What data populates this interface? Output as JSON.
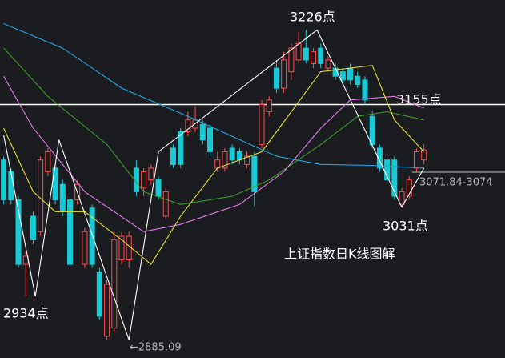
{
  "chart_data": {
    "type": "candlestick",
    "title": "上证指数日K线图解",
    "xlim": [
      -0.5,
      68
    ],
    "ylim": [
      2865,
      3259
    ],
    "up_color": "#ff4d4f",
    "down_color": "#19c9d6",
    "open": [
      3083,
      3070,
      3039,
      2968,
      3021,
      3004,
      3070,
      3074,
      3056,
      3039,
      3039,
      2968,
      3030,
      2959,
      2889,
      2898,
      2973,
      2973,
      3074,
      3052,
      3061,
      3061,
      3021,
      3096,
      3114,
      3114,
      3118,
      3122,
      3118,
      3074,
      3074,
      3096,
      3092,
      3078,
      3087,
      3100,
      3136,
      3184,
      3162,
      3180,
      3193,
      3206,
      3189,
      3206,
      3184,
      3184,
      3180,
      3184,
      3175,
      3171,
      3131,
      3096,
      3083,
      3083,
      3034,
      3043,
      3074,
      3083
    ],
    "high": [
      3087,
      3074,
      3043,
      2982,
      3026,
      3087,
      3096,
      3078,
      3061,
      3043,
      3061,
      3008,
      3034,
      2964,
      2951,
      3004,
      3004,
      3004,
      3083,
      3074,
      3078,
      3065,
      3052,
      3100,
      3118,
      3136,
      3142,
      3127,
      3122,
      3092,
      3096,
      3100,
      3096,
      3092,
      3092,
      3149,
      3153,
      3193,
      3202,
      3211,
      3224,
      3226,
      3206,
      3211,
      3197,
      3189,
      3184,
      3189,
      3180,
      3175,
      3136,
      3100,
      3087,
      3087,
      3052,
      3065,
      3096,
      3100
    ],
    "low": [
      3034,
      3034,
      2964,
      2933,
      2990,
      2999,
      3065,
      3034,
      3021,
      2964,
      3034,
      2964,
      2964,
      2907,
      2885,
      2893,
      2968,
      2964,
      3043,
      3043,
      3056,
      3039,
      3017,
      3074,
      3074,
      3109,
      3114,
      3100,
      3087,
      3070,
      3070,
      3078,
      3078,
      3074,
      3032,
      3096,
      3131,
      3157,
      3157,
      3171,
      3189,
      3189,
      3184,
      3184,
      3180,
      3171,
      3166,
      3166,
      3162,
      3144,
      3096,
      3070,
      3056,
      3039,
      3031,
      3039,
      3070,
      3078
    ],
    "close": [
      3039,
      3039,
      2968,
      2977,
      2995,
      3083,
      3092,
      3039,
      3026,
      2968,
      3056,
      3004,
      2968,
      2911,
      2946,
      2995,
      2999,
      2999,
      3048,
      3070,
      3074,
      3043,
      3048,
      3078,
      3078,
      3127,
      3127,
      3105,
      3092,
      3083,
      3092,
      3083,
      3083,
      3087,
      3048,
      3144,
      3149,
      3162,
      3193,
      3206,
      3211,
      3193,
      3202,
      3189,
      3193,
      3175,
      3171,
      3171,
      3166,
      3149,
      3100,
      3074,
      3061,
      3043,
      3048,
      3061,
      3092,
      3094
    ],
    "lines": [
      {
        "color": "#1ea7e8",
        "x": [
          0,
          8,
          16,
          25,
          31,
          37,
          43,
          50,
          57
        ],
        "values": [
          3233,
          3206,
          3162,
          3131,
          3109,
          3087,
          3078,
          3077,
          3074
        ]
      },
      {
        "color": "#3d9a2a",
        "x": [
          0,
          6,
          14,
          19,
          24,
          31,
          36,
          43,
          48,
          52,
          57
        ],
        "values": [
          3206,
          3153,
          3100,
          3048,
          3034,
          3043,
          3061,
          3100,
          3131,
          3136,
          3127
        ]
      },
      {
        "color": "#e27be8",
        "x": [
          0,
          4,
          11,
          19,
          24,
          32,
          38,
          43,
          47,
          53,
          57
        ],
        "values": [
          3175,
          3118,
          3048,
          3004,
          3012,
          3034,
          3070,
          3118,
          3149,
          3153,
          3140
        ]
      },
      {
        "color": "#e8e030",
        "x": [
          0,
          4,
          7,
          11,
          16,
          20,
          24,
          29,
          35,
          39,
          43,
          50,
          53,
          57
        ],
        "values": [
          3118,
          3048,
          3026,
          3026,
          2995,
          2968,
          3021,
          3074,
          3092,
          3136,
          3180,
          3187,
          3127,
          3092
        ]
      },
      {
        "color": "#ffffff",
        "x": [
          0,
          4.3,
          7.5,
          17,
          21,
          42.5,
          54,
          57
        ],
        "values": [
          3110,
          2933,
          3105,
          2885,
          3092,
          3226,
          3031,
          3074
        ]
      }
    ],
    "reference_line": {
      "value": 3144,
      "color": "#ffffff"
    },
    "annotations": [
      "3226点",
      "3155点",
      "3031点",
      "2934点",
      "←2885.09",
      "3071.84-3074"
    ]
  }
}
